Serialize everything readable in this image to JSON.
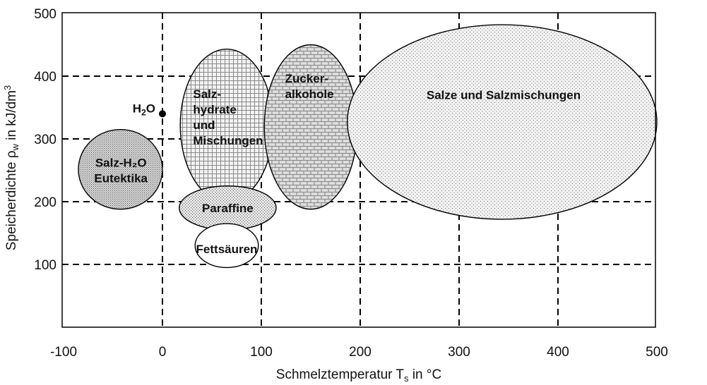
{
  "chart_data": {
    "type": "scatter",
    "title": "",
    "xlabel": "Schmelztemperatur T",
    "xlabel_sub": "s",
    "xlabel_suffix": " in °C",
    "ylabel": "Speicherdichte ρ",
    "ylabel_sub": "w",
    "ylabel_suffix": " in kJ/dm",
    "ylabel_sup": "3",
    "xlim": [
      -100,
      500
    ],
    "ylim": [
      0,
      500
    ],
    "x_ticks": [
      "-100",
      "0",
      "100",
      "200",
      "300",
      "400",
      "500"
    ],
    "y_ticks": [
      "100",
      "200",
      "300",
      "400",
      "500"
    ],
    "grid": true,
    "grid_style": "dashed",
    "regions": [
      {
        "name": "Salz-H2O Eutektika",
        "label_lines": [
          "Salz-H₂O",
          "Eutektika"
        ],
        "x_range": [
          -85,
          0
        ],
        "y_range": [
          188,
          315
        ],
        "pattern": "dots-dense"
      },
      {
        "name": "Salzhydrate und Mischungen",
        "label_lines": [
          "Salz-",
          "hydrate",
          "und",
          "Mischungen"
        ],
        "x_range": [
          18,
          112
        ],
        "y_range": [
          200,
          443
        ],
        "pattern": "grid"
      },
      {
        "name": "Zuckeralkohole",
        "label_lines": [
          "Zucker-",
          "alkohole"
        ],
        "x_range": [
          103,
          197
        ],
        "y_range": [
          188,
          450
        ],
        "pattern": "brick"
      },
      {
        "name": "Salze und Salzmischungen",
        "label_lines": [
          "Salze und Salzmischungen"
        ],
        "x_range": [
          187,
          500
        ],
        "y_range": [
          172,
          482
        ],
        "pattern": "dots-sparse"
      },
      {
        "name": "Paraffine",
        "label_lines": [
          "Paraffine"
        ],
        "x_range": [
          17,
          115
        ],
        "y_range": [
          155,
          225
        ],
        "pattern": "dots-medium"
      },
      {
        "name": "Fettsäuren",
        "label_lines": [
          "Fettsäuren"
        ],
        "x_range": [
          33,
          97
        ],
        "y_range": [
          95,
          165
        ],
        "pattern": "none"
      }
    ],
    "points": [
      {
        "name": "H2O",
        "label": "H",
        "label_sub": "2",
        "label_suffix": "O",
        "x": 0,
        "y": 340
      }
    ]
  }
}
